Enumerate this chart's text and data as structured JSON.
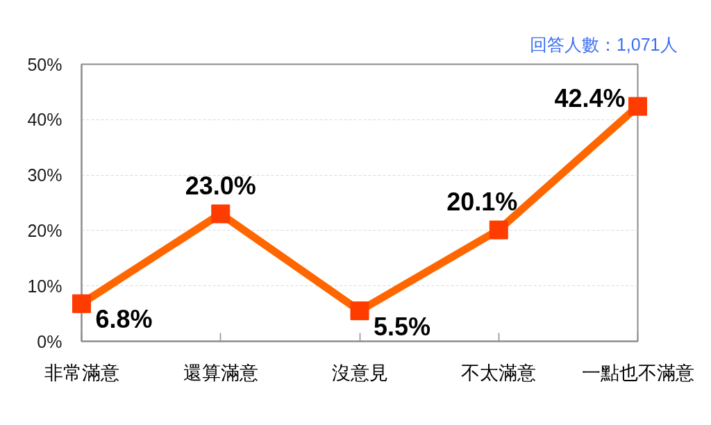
{
  "chart_data": {
    "type": "line",
    "annotations": [
      "回答人數：1,071人"
    ],
    "categories": [
      "非常滿意",
      "還算滿意",
      "沒意見",
      "不太滿意",
      "一點也不滿意"
    ],
    "series": [
      {
        "color": "#ff6600",
        "colors": [
          "#ff3c00",
          "#ff3c00",
          "#ff3c00",
          "#ff3c00",
          "#ff3c00"
        ],
        "values": [
          6.8,
          23.0,
          5.5,
          20.1,
          42.4
        ],
        "value_labels": [
          "6.8%",
          "23.0%",
          "5.5%",
          "20.1%",
          "42.4%"
        ]
      }
    ],
    "ylim": [
      0,
      50
    ],
    "yticks": [
      {
        "value": 0,
        "label": "0%"
      },
      {
        "value": 10,
        "label": "10%"
      },
      {
        "value": 20,
        "label": "20%"
      },
      {
        "value": 30,
        "label": "30%"
      },
      {
        "value": 40,
        "label": "40%"
      },
      {
        "value": 50,
        "label": "50%"
      }
    ],
    "grid": "y",
    "marker": "square",
    "line_style": "solid"
  }
}
